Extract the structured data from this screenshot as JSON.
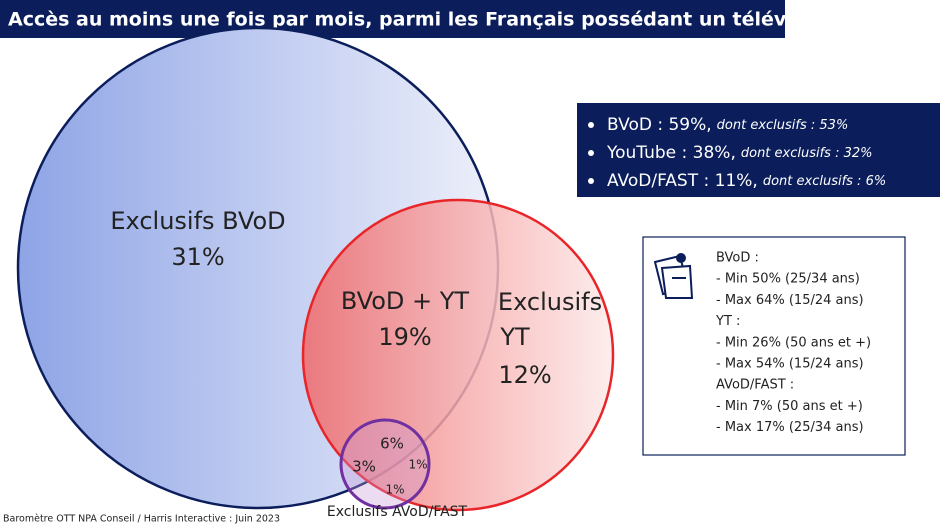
{
  "header": {
    "title": "Accès au moins une fois par mois, parmi les Français possédant un téléviseur :"
  },
  "summary": [
    {
      "label": "BVoD : 59%,",
      "note": "dont exclusifs : 53%"
    },
    {
      "label": "YouTube : 38%,",
      "note": "dont exclusifs : 32%"
    },
    {
      "label": "AVoD/FAST : 11%,",
      "note": "dont exclusifs : 6%"
    }
  ],
  "regions": {
    "bvod_only": {
      "label": "Exclusifs BVoD",
      "share": "31%"
    },
    "bvod_yt": {
      "label": "BVoD + YT",
      "share": "19%"
    },
    "yt_only": {
      "label": "Exclusifs",
      "label2": "YT",
      "share": "12%"
    },
    "all_three": "6%",
    "bvod_avod": "3%",
    "yt_avod": "1%",
    "avod_only": "1%",
    "avod_label": "Exclusifs AVoD/FAST"
  },
  "notes": [
    "BVoD :",
    "- Min 50% (25/34 ans)",
    "- Max 64% (15/24 ans)",
    "YT :",
    "- Min 26% (50 ans et +)",
    "- Max 54% (15/24 ans)",
    "AVoD/FAST :",
    "- Min 7% (50 ans et +)",
    "- Max 17% (25/34 ans)"
  ],
  "footer": "Baromètre OTT NPA Conseil / Harris Interactive : Juin 2023"
}
